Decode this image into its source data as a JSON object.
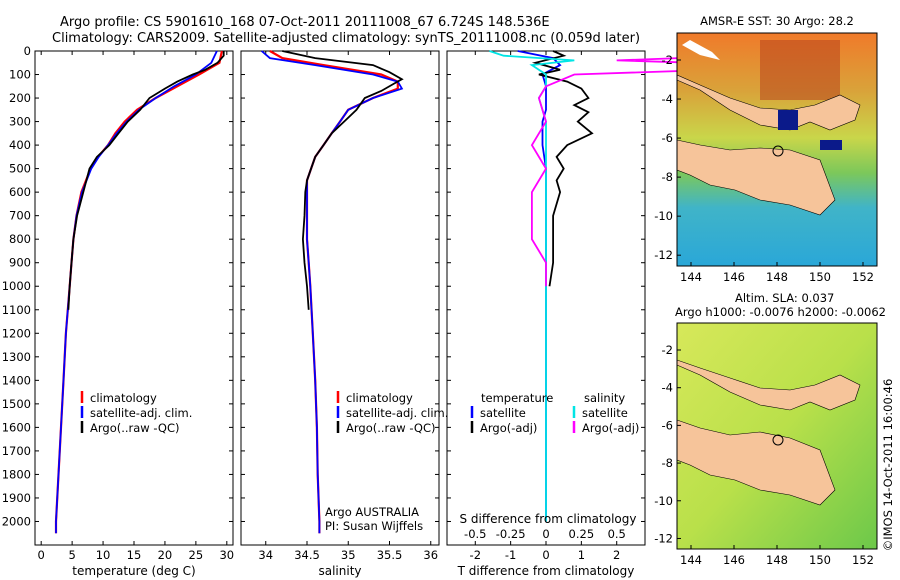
{
  "header": {
    "line1": "Argo profile: CS 5901610_168 07-Oct-2011 20111008_67 6.724S 148.536E",
    "line2": "Climatology: CARS2009. Satellite-adjusted climatology: synTS_20111008.nc (0.059d later)"
  },
  "side_stamp": "©IMOS 14-Oct-2011 16:00:46",
  "colors": {
    "climatology": "#ff0000",
    "satellite": "#0000ff",
    "argo": "#000000",
    "sat_s": "#00e5e5",
    "argo_s": "#ff00ff"
  },
  "chart_data": [
    {
      "type": "line",
      "id": "temperature",
      "xlabel": "temperature (deg C)",
      "ylim": [
        2100,
        0
      ],
      "xlim": [
        -1,
        31
      ],
      "xticks": [
        "0",
        "5",
        "10",
        "15",
        "20",
        "25",
        "30"
      ],
      "yticks": [
        "0",
        "100",
        "200",
        "300",
        "400",
        "500",
        "600",
        "700",
        "800",
        "900",
        "1000",
        "1100",
        "1200",
        "1300",
        "1400",
        "1500",
        "1600",
        "1700",
        "1800",
        "1900",
        "2000"
      ],
      "legend": [
        "climatology",
        "satellite-adj. clim.",
        "Argo(..raw -QC)"
      ],
      "series": [
        {
          "name": "climatology",
          "depth": [
            0,
            50,
            100,
            150,
            200,
            250,
            300,
            350,
            400,
            450,
            500,
            600,
            700,
            800,
            900,
            1000,
            1200,
            1400,
            1600,
            1800,
            2000,
            2050
          ],
          "values": [
            29.2,
            28.8,
            25.5,
            22.0,
            18.5,
            15.5,
            13.5,
            12.0,
            10.8,
            9.2,
            8.0,
            6.5,
            5.7,
            5.2,
            4.9,
            4.6,
            4.0,
            3.6,
            3.2,
            2.8,
            2.4,
            2.4
          ]
        },
        {
          "name": "satellite-adj. clim.",
          "depth": [
            0,
            50,
            100,
            150,
            200,
            250,
            300,
            350,
            400,
            450,
            500,
            600,
            700,
            800,
            900,
            1000,
            1200,
            1400,
            1600,
            1800,
            2000,
            2050
          ],
          "values": [
            28.4,
            27.5,
            25.0,
            21.5,
            18.5,
            15.8,
            13.8,
            12.2,
            10.8,
            9.3,
            8.1,
            6.6,
            5.7,
            5.2,
            4.9,
            4.6,
            4.0,
            3.6,
            3.2,
            2.8,
            2.4,
            2.4
          ]
        },
        {
          "name": "Argo(..raw -QC)",
          "depth": [
            0,
            20,
            50,
            80,
            100,
            130,
            160,
            200,
            250,
            300,
            350,
            400,
            450,
            500,
            600,
            700,
            800,
            900,
            1000,
            1100
          ],
          "values": [
            29.5,
            29.5,
            28.5,
            26.5,
            24.5,
            22.0,
            20.0,
            17.5,
            16.0,
            14.0,
            12.5,
            11.0,
            9.0,
            7.8,
            6.8,
            5.8,
            5.2,
            4.9,
            4.6,
            4.4
          ]
        }
      ]
    },
    {
      "type": "line",
      "id": "salinity",
      "xlabel": "salinity",
      "ylim": [
        2100,
        0
      ],
      "xlim": [
        33.7,
        36.1
      ],
      "xticks": [
        "34",
        "34.5",
        "35",
        "35.5",
        "36"
      ],
      "legend": [
        "climatology",
        "satellite-adj. clim.",
        "Argo(..raw -QC)"
      ],
      "annotation": [
        "Argo AUSTRALIA",
        "PI: Susan Wijffels"
      ],
      "series": [
        {
          "name": "climatology",
          "depth": [
            0,
            30,
            60,
            100,
            130,
            160,
            200,
            250,
            300,
            350,
            400,
            450,
            500,
            550,
            600,
            700,
            800,
            900,
            1000,
            1200,
            1400,
            1600,
            1800,
            2000,
            2050
          ],
          "values": [
            34.05,
            34.2,
            34.7,
            35.4,
            35.6,
            35.6,
            35.3,
            35.0,
            34.9,
            34.8,
            34.7,
            34.6,
            34.55,
            34.5,
            34.5,
            34.5,
            34.5,
            34.52,
            34.54,
            34.57,
            34.6,
            34.62,
            34.63,
            34.65,
            34.65
          ]
        },
        {
          "name": "satellite-adj. clim.",
          "depth": [
            0,
            30,
            60,
            100,
            130,
            160,
            200,
            250,
            300,
            350,
            400,
            450,
            500,
            550,
            600,
            700,
            800,
            900,
            1000,
            1200,
            1400,
            1600,
            1800,
            2000,
            2050
          ],
          "values": [
            33.95,
            34.05,
            34.6,
            35.3,
            35.6,
            35.65,
            35.3,
            35.0,
            34.9,
            34.8,
            34.7,
            34.6,
            34.55,
            34.5,
            34.5,
            34.5,
            34.5,
            34.52,
            34.54,
            34.57,
            34.6,
            34.62,
            34.63,
            34.65,
            34.65
          ]
        },
        {
          "name": "Argo(..raw -QC)",
          "depth": [
            0,
            30,
            60,
            90,
            120,
            140,
            170,
            200,
            250,
            300,
            350,
            400,
            450,
            500,
            550,
            600,
            700,
            800,
            900,
            1000,
            1100
          ],
          "values": [
            34.2,
            34.6,
            35.3,
            35.5,
            35.65,
            35.55,
            35.4,
            35.2,
            35.1,
            34.95,
            34.8,
            34.7,
            34.6,
            34.55,
            34.5,
            34.48,
            34.47,
            34.45,
            34.47,
            34.5,
            34.52
          ]
        }
      ]
    },
    {
      "type": "line",
      "id": "difference",
      "xlabel": "T difference from climatology",
      "xlabel_top": "S difference from climatology",
      "ylim": [
        2100,
        0
      ],
      "xlim": [
        -2.8,
        2.8
      ],
      "xticks": [
        "-2",
        "-1",
        "0",
        "1",
        "2"
      ],
      "xticks_top": [
        "-0.5",
        "-0.25",
        "0",
        "0.25",
        "0.5"
      ],
      "legend_left_title": "temperature",
      "legend_right_title": "salinity",
      "legend": [
        "satellite",
        "Argo(-adj)",
        "satellite",
        "Argo(-adj)"
      ],
      "series": [
        {
          "name": "T satellite",
          "depth": [
            0,
            30,
            60,
            100,
            150,
            200,
            250,
            300,
            400,
            500,
            600,
            700,
            800,
            900,
            1000,
            1200,
            1500,
            2000
          ],
          "values": [
            -0.8,
            0.2,
            0.4,
            -0.1,
            0.0,
            0.0,
            0.0,
            -0.1,
            -0.1,
            0.0,
            0.0,
            0.0,
            0.0,
            0.0,
            0.0,
            0.0,
            0.0,
            0.0
          ]
        },
        {
          "name": "T Argo(-adj)",
          "depth": [
            0,
            20,
            50,
            80,
            100,
            130,
            160,
            200,
            230,
            260,
            300,
            350,
            400,
            450,
            500,
            550,
            600,
            700,
            800,
            900,
            1000
          ],
          "values": [
            0.2,
            0.5,
            -0.3,
            0.4,
            -0.2,
            0.6,
            1.0,
            1.2,
            0.8,
            1.2,
            0.9,
            1.3,
            0.6,
            0.3,
            0.5,
            0.3,
            0.4,
            0.2,
            0.2,
            0.2,
            0.1
          ]
        },
        {
          "name": "S satellite",
          "depth": [
            0,
            20,
            40,
            60,
            100,
            150,
            200,
            300,
            400,
            500,
            600,
            700,
            800,
            1000,
            1500,
            2000
          ],
          "values": [
            -0.4,
            -0.3,
            0.2,
            -0.1,
            0.0,
            0.0,
            -0.05,
            0.0,
            0.0,
            0.0,
            0.0,
            0.0,
            0.0,
            0.0,
            0.0,
            0.0
          ]
        },
        {
          "name": "S Argo(-adj)",
          "depth": [
            0,
            20,
            40,
            60,
            80,
            100,
            150,
            200,
            300,
            400,
            500,
            600,
            700,
            800,
            900,
            1000
          ],
          "values": [
            1.8,
            1.4,
            0.5,
            1.6,
            1.2,
            0.2,
            0.0,
            -0.05,
            0.0,
            -0.1,
            0.0,
            -0.1,
            -0.1,
            -0.1,
            0.0,
            0.0
          ]
        }
      ]
    }
  ],
  "maps": [
    {
      "title": "AMSR-E SST: 30 Argo: 28.2",
      "subtitle": "",
      "xticks": [
        "144",
        "146",
        "148",
        "150",
        "152"
      ],
      "yticks": [
        "-2",
        "-4",
        "-6",
        "-8",
        "-10",
        "-12"
      ]
    },
    {
      "title": "Altim. SLA: 0.037",
      "subtitle": "Argo h1000: -0.0076 h2000: -0.0062",
      "xticks": [
        "144",
        "146",
        "148",
        "150",
        "152"
      ],
      "yticks": [
        "-2",
        "-4",
        "-6",
        "-8",
        "-10",
        "-12"
      ]
    }
  ]
}
